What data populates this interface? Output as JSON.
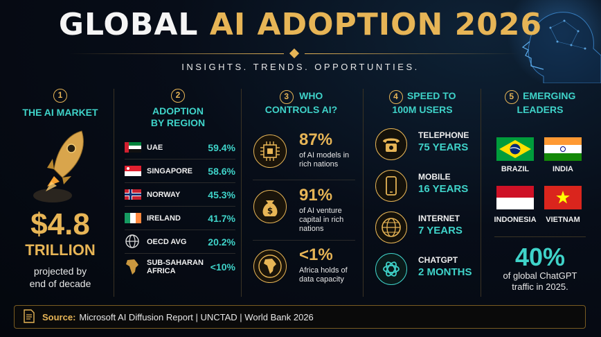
{
  "header": {
    "title_white": "GLOBAL",
    "title_gold": "AI ADOPTION 2026",
    "subtitle": "INSIGHTS. TRENDS. OPPORTUNTIES."
  },
  "market": {
    "number": "1",
    "title": "THE AI MARKET",
    "value": "$4.8",
    "unit": "TRILLION",
    "desc_line1": "projected by",
    "desc_line2": "end of decade"
  },
  "region": {
    "number": "2",
    "title_line1": "ADOPTION",
    "title_line2": "BY REGION",
    "rows": [
      {
        "name": "UAE",
        "pct": "59.4%"
      },
      {
        "name": "SINGAPORE",
        "pct": "58.6%"
      },
      {
        "name": "NORWAY",
        "pct": "45.3%"
      },
      {
        "name": "IRELAND",
        "pct": "41.7%"
      },
      {
        "name": "OECD AVG",
        "pct": "20.2%"
      },
      {
        "name": "SUB-SAHARAN AFRICA",
        "pct": "<10%"
      }
    ]
  },
  "control": {
    "number": "3",
    "title_line1": "WHO",
    "title_line2": "CONTROLS AI?",
    "stats": [
      {
        "value": "87%",
        "desc": "of AI models in rich nations",
        "icon": "chip-icon"
      },
      {
        "value": "91%",
        "desc": "of AI venture capital in rich nations",
        "icon": "money-bag-icon"
      },
      {
        "value": "<1%",
        "desc": "Africa holds of data capacity",
        "icon": "africa-globe-icon"
      }
    ]
  },
  "speed": {
    "number": "4",
    "title_line1": "SPEED TO",
    "title_line2": "100M USERS",
    "items": [
      {
        "name": "TELEPHONE",
        "years": "75 YEARS",
        "icon": "telephone-icon"
      },
      {
        "name": "MOBILE",
        "years": "16 YEARS",
        "icon": "mobile-icon"
      },
      {
        "name": "INTERNET",
        "years": "7 YEARS",
        "icon": "globe-icon"
      },
      {
        "name": "CHATGPT",
        "years": "2 MONTHS",
        "icon": "chatgpt-icon"
      }
    ]
  },
  "leaders": {
    "number": "5",
    "title_line1": "EMERGING",
    "title_line2": "LEADERS",
    "countries": [
      "BRAZIL",
      "INDIA",
      "INDONESIA",
      "VIETNAM"
    ],
    "value": "40%",
    "desc_line1": "of global ChatGPT",
    "desc_line2": "traffic in 2025."
  },
  "source": {
    "label": "Source:",
    "text": "Microsoft AI Diffusion Report | UNCTAD | World Bank 2026"
  },
  "colors": {
    "gold": "#e7b556",
    "teal": "#3fd3c9",
    "background": "#070d18"
  }
}
